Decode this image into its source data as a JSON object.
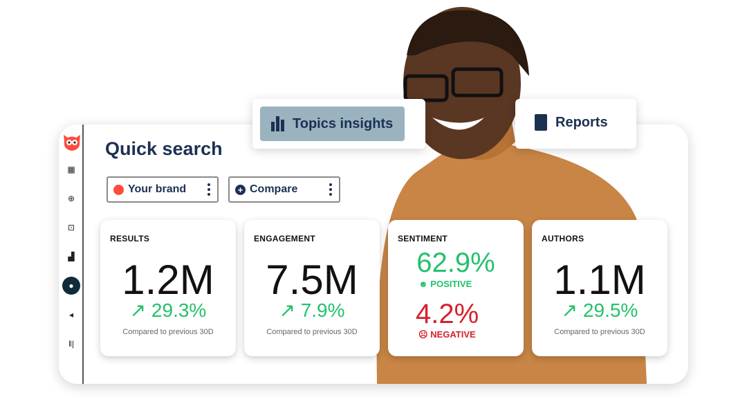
{
  "header": {
    "title": "Quick search"
  },
  "tabs": {
    "topics": "Topics insights",
    "reports": "Reports"
  },
  "selectors": {
    "brand": "Your brand",
    "compare": "Compare"
  },
  "colors": {
    "brand_dot": "#ff4b3e",
    "positive": "#23c16b",
    "negative": "#d6202c",
    "navy": "#1c3052",
    "active_tab": "#9ab3bf"
  },
  "cards": [
    {
      "label": "RESULTS",
      "value": "1.2M",
      "change": "29.3%",
      "compare": "Compared to previous 30D"
    },
    {
      "label": "ENGAGEMENT",
      "value": "7.5M",
      "change": "7.9%",
      "compare": "Compared to previous 30D"
    },
    {
      "label": "SENTIMENT",
      "positive_value": "62.9%",
      "positive_label": "POSITIVE",
      "negative_value": "4.2%",
      "negative_label": "NEGATIVE"
    },
    {
      "label": "AUTHORS",
      "value": "1.1M",
      "change": "29.5%",
      "compare": "Compared to previous 30D"
    }
  ],
  "sidebar": [
    "owl-logo",
    "calendar-icon",
    "plus-circle-icon",
    "inbox-icon",
    "analytics-icon",
    "lightbulb-icon",
    "megaphone-icon",
    "sound-bars-icon"
  ]
}
